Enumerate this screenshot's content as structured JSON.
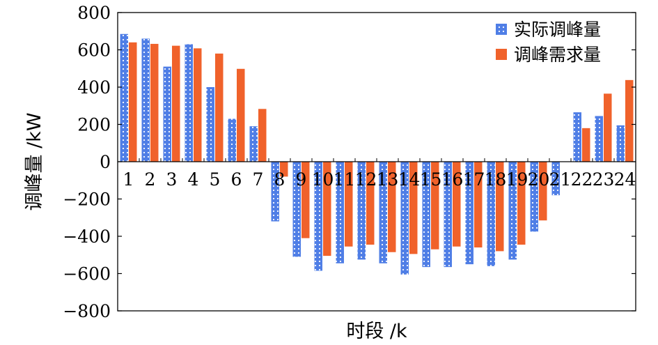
{
  "chart_data": {
    "type": "bar",
    "title": "",
    "xlabel": "时段 /k",
    "ylabel": "调峰量 /kW",
    "ylim": [
      -800,
      800
    ],
    "yticks": [
      800,
      600,
      400,
      200,
      0,
      -200,
      -400,
      -600,
      -800
    ],
    "ytick_labels": [
      "800",
      "600",
      "400",
      "200",
      "0",
      "−200",
      "−400",
      "−600",
      "−800"
    ],
    "categories": [
      "1",
      "2",
      "3",
      "4",
      "5",
      "6",
      "7",
      "8",
      "9",
      "10",
      "11",
      "12",
      "13",
      "14",
      "15",
      "16",
      "17",
      "18",
      "19",
      "20",
      "21",
      "22",
      "23",
      "24"
    ],
    "series": [
      {
        "name": "实际调峰量",
        "color": "#4f7ee6",
        "pattern": "dotted",
        "values": [
          685,
          660,
          510,
          630,
          400,
          230,
          190,
          -320,
          -510,
          -585,
          -545,
          -525,
          -545,
          -605,
          -565,
          -565,
          -550,
          -560,
          -525,
          -375,
          -180,
          265,
          245,
          195
        ]
      },
      {
        "name": "调峰需求量",
        "color": "#f0622b",
        "pattern": "solid",
        "values": [
          640,
          632,
          622,
          608,
          580,
          498,
          283,
          -80,
          -410,
          -505,
          -455,
          -445,
          -485,
          -495,
          -470,
          -455,
          -460,
          -480,
          -445,
          -315,
          0,
          180,
          365,
          438
        ]
      }
    ],
    "grid": false,
    "legend": "top-right"
  }
}
